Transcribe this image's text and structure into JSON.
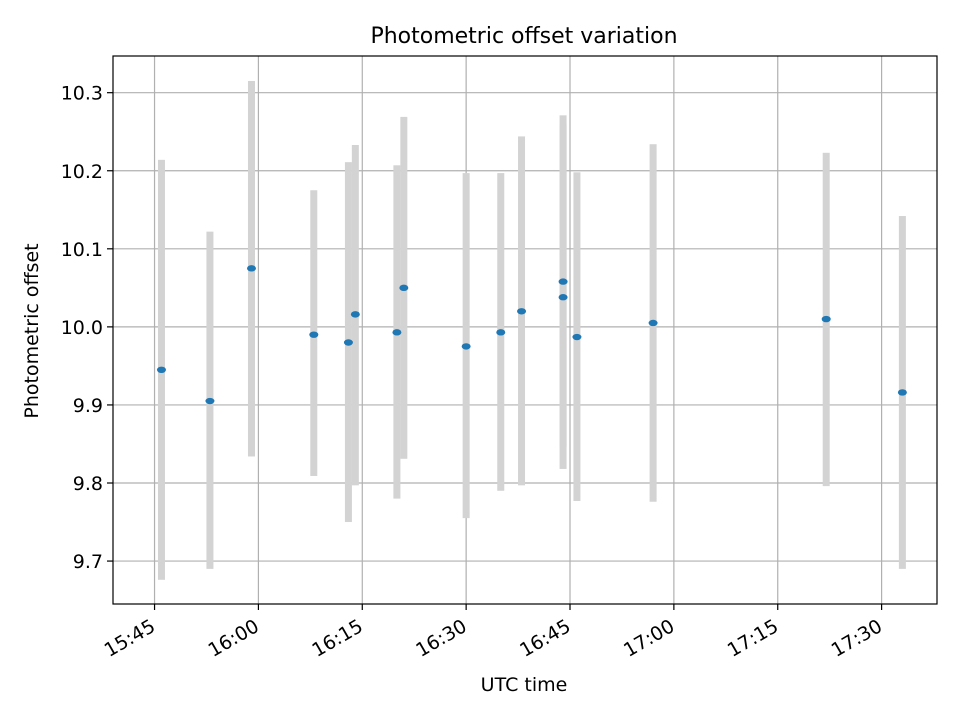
{
  "chart_data": {
    "type": "scatter",
    "title": "Photometric offset variation",
    "xlabel": "UTC time",
    "ylabel": "Photometric offset",
    "x_type": "time",
    "xlim": [
      "15:39",
      "17:38"
    ],
    "ylim": [
      9.645,
      10.347
    ],
    "x_ticks": [
      "15:45",
      "16:00",
      "16:15",
      "16:30",
      "16:45",
      "17:00",
      "17:15",
      "17:30"
    ],
    "y_ticks": [
      "9.7",
      "9.8",
      "9.9",
      "10.0",
      "10.1",
      "10.2",
      "10.3"
    ],
    "grid": true,
    "legend": false,
    "marker_color": "#1f77b4",
    "errorbar_color": "#d3d3d3",
    "series": [
      {
        "points": [
          {
            "x": "15:46",
            "y": 9.945,
            "ylow": 9.676,
            "yhigh": 10.214
          },
          {
            "x": "15:53",
            "y": 9.905,
            "ylow": 9.69,
            "yhigh": 10.122
          },
          {
            "x": "15:59",
            "y": 10.075,
            "ylow": 9.834,
            "yhigh": 10.315
          },
          {
            "x": "16:08",
            "y": 9.99,
            "ylow": 9.809,
            "yhigh": 10.175
          },
          {
            "x": "16:13",
            "y": 9.98,
            "ylow": 9.75,
            "yhigh": 10.211
          },
          {
            "x": "16:14",
            "y": 10.016,
            "ylow": 9.797,
            "yhigh": 10.233
          },
          {
            "x": "16:20",
            "y": 9.993,
            "ylow": 9.78,
            "yhigh": 10.207
          },
          {
            "x": "16:21",
            "y": 10.05,
            "ylow": 9.831,
            "yhigh": 10.269
          },
          {
            "x": "16:30",
            "y": 9.975,
            "ylow": 9.755,
            "yhigh": 10.197
          },
          {
            "x": "16:35",
            "y": 9.993,
            "ylow": 9.79,
            "yhigh": 10.197
          },
          {
            "x": "16:38",
            "y": 10.02,
            "ylow": 9.797,
            "yhigh": 10.244
          },
          {
            "x": "16:44",
            "y": 10.058,
            "ylow": 9.846,
            "yhigh": 10.271
          },
          {
            "x": "16:44",
            "y": 10.038,
            "ylow": 9.818,
            "yhigh": 10.259
          },
          {
            "x": "16:46",
            "y": 9.987,
            "ylow": 9.777,
            "yhigh": 10.198
          },
          {
            "x": "16:57",
            "y": 10.005,
            "ylow": 9.776,
            "yhigh": 10.234
          },
          {
            "x": "17:22",
            "y": 10.01,
            "ylow": 9.796,
            "yhigh": 10.223
          },
          {
            "x": "17:33",
            "y": 9.916,
            "ylow": 9.69,
            "yhigh": 10.142
          }
        ]
      }
    ]
  }
}
